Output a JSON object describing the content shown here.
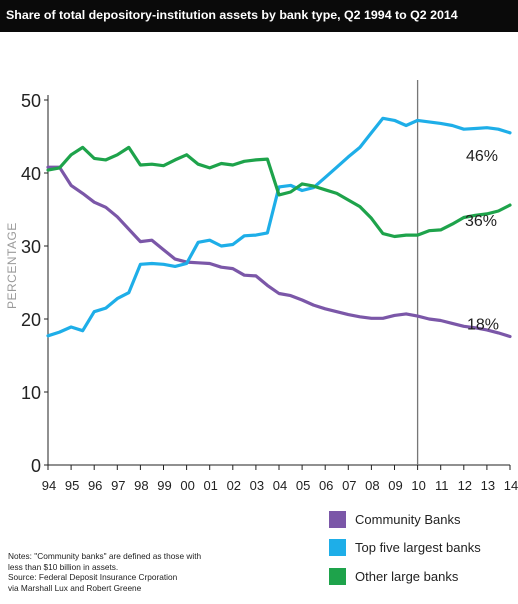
{
  "chart_data": {
    "type": "line",
    "title": "Share of total depository-institution assets by bank type, Q2 1994 to Q2 2014",
    "ylabel": "PERCENTAGE",
    "xlabel": "",
    "ylim": [
      0,
      50
    ],
    "yticks": [
      "0",
      "10",
      "20",
      "30",
      "40",
      "50"
    ],
    "xlim": [
      1994.5,
      2014.5
    ],
    "xticks": [
      {
        "label": "94",
        "value": 1994.5
      },
      {
        "label": "95",
        "value": 1995.5
      },
      {
        "label": "96",
        "value": 1996.5
      },
      {
        "label": "97",
        "value": 1997.5
      },
      {
        "label": "98",
        "value": 1998.5
      },
      {
        "label": "99",
        "value": 1999.5
      },
      {
        "label": "00",
        "value": 2000.5
      },
      {
        "label": "01",
        "value": 2001.5
      },
      {
        "label": "02",
        "value": 2002.5
      },
      {
        "label": "03",
        "value": 2003.5
      },
      {
        "label": "04",
        "value": 2004.5
      },
      {
        "label": "05",
        "value": 2005.5
      },
      {
        "label": "06",
        "value": 2006.5
      },
      {
        "label": "07",
        "value": 2007.5
      },
      {
        "label": "08",
        "value": 2008.5
      },
      {
        "label": "09",
        "value": 2009.5
      },
      {
        "label": "10",
        "value": 2010.5
      },
      {
        "label": "11",
        "value": 2011.5
      },
      {
        "label": "12",
        "value": 2012.5
      },
      {
        "label": "13",
        "value": 2013.5
      },
      {
        "label": "14",
        "value": 2014.5
      }
    ],
    "grid": false,
    "legend_position": "bottom-right",
    "reference_line_x": 2010.5,
    "series": [
      {
        "name": "Community Banks",
        "color": "#7b57a8",
        "end_label": "18%",
        "x": [
          1994.5,
          1995.0,
          1995.5,
          1996.0,
          1996.5,
          1997.0,
          1997.5,
          1998.0,
          1998.5,
          1999.0,
          1999.5,
          2000.0,
          2000.5,
          2001.0,
          2001.5,
          2002.0,
          2002.5,
          2003.0,
          2003.5,
          2004.0,
          2004.5,
          2005.0,
          2005.5,
          2006.0,
          2006.5,
          2007.0,
          2007.5,
          2008.0,
          2008.5,
          2009.0,
          2009.5,
          2010.0,
          2010.5,
          2011.0,
          2011.5,
          2012.0,
          2012.5,
          2013.0,
          2013.5,
          2014.0,
          2014.5
        ],
        "values": [
          40.8,
          40.8,
          38.3,
          37.2,
          36.0,
          35.3,
          34.0,
          32.3,
          30.6,
          30.8,
          29.5,
          28.2,
          27.8,
          27.7,
          27.6,
          27.1,
          26.9,
          26.0,
          25.9,
          24.6,
          23.5,
          23.2,
          22.6,
          21.9,
          21.4,
          21.0,
          20.6,
          20.3,
          20.1,
          20.1,
          20.5,
          20.7,
          20.4,
          20.0,
          19.8,
          19.4,
          19.0,
          18.8,
          18.5,
          18.1,
          17.6
        ]
      },
      {
        "name": "Top five largest banks",
        "color": "#1eaee8",
        "end_label": "46%",
        "x": [
          1994.5,
          1995.0,
          1995.5,
          1996.0,
          1996.5,
          1997.0,
          1997.5,
          1998.0,
          1998.5,
          1999.0,
          1999.5,
          2000.0,
          2000.5,
          2001.0,
          2001.5,
          2002.0,
          2002.5,
          2003.0,
          2003.5,
          2004.0,
          2004.5,
          2005.0,
          2005.5,
          2006.0,
          2006.5,
          2007.0,
          2007.5,
          2008.0,
          2008.5,
          2009.0,
          2009.5,
          2010.0,
          2010.5,
          2011.0,
          2011.5,
          2012.0,
          2012.5,
          2013.0,
          2013.5,
          2014.0,
          2014.5
        ],
        "values": [
          17.7,
          18.2,
          18.9,
          18.4,
          21.0,
          21.5,
          22.8,
          23.6,
          27.5,
          27.6,
          27.5,
          27.2,
          27.6,
          30.5,
          30.8,
          30.0,
          30.2,
          31.4,
          31.5,
          31.8,
          38.1,
          38.3,
          37.6,
          38.0,
          39.4,
          40.8,
          42.2,
          43.5,
          45.5,
          47.5,
          47.2,
          46.5,
          47.2,
          47.0,
          46.8,
          46.5,
          46.0,
          46.1,
          46.2,
          46.0,
          45.5
        ]
      },
      {
        "name": "Other large banks",
        "color": "#1ea34b",
        "end_label": "36%",
        "x": [
          1994.5,
          1995.0,
          1995.5,
          1996.0,
          1996.5,
          1997.0,
          1997.5,
          1998.0,
          1998.5,
          1999.0,
          1999.5,
          2000.0,
          2000.5,
          2001.0,
          2001.5,
          2002.0,
          2002.5,
          2003.0,
          2003.5,
          2004.0,
          2004.5,
          2005.0,
          2005.5,
          2006.0,
          2006.5,
          2007.0,
          2007.5,
          2008.0,
          2008.5,
          2009.0,
          2009.5,
          2010.0,
          2010.5,
          2011.0,
          2011.5,
          2012.0,
          2012.5,
          2013.0,
          2013.5,
          2014.0,
          2014.5
        ],
        "values": [
          40.4,
          40.7,
          42.5,
          43.5,
          42.0,
          41.8,
          42.5,
          43.5,
          41.1,
          41.2,
          41.0,
          41.8,
          42.5,
          41.2,
          40.7,
          41.3,
          41.1,
          41.6,
          41.8,
          41.9,
          37.0,
          37.4,
          38.5,
          38.2,
          37.7,
          37.2,
          36.3,
          35.4,
          33.8,
          31.7,
          31.3,
          31.5,
          31.5,
          32.1,
          32.2,
          33.0,
          33.9,
          34.2,
          34.4,
          34.8,
          35.6
        ]
      }
    ]
  },
  "notes": [
    "Notes: \"Community banks\" are defined as those with",
    "less than $10 billion in assets.",
    "Source: Federal Deposit Insurance Crporation",
    "via Marshall Lux and Robert Greene"
  ]
}
